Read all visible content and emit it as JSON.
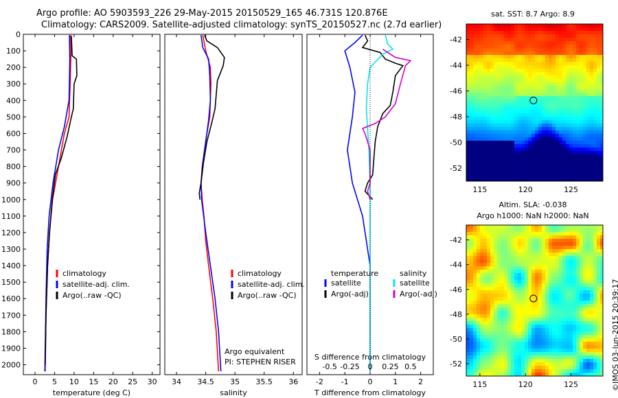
{
  "header": {
    "line1": "Argo profile: AO 5903593_226 29-May-2015 20150529_165 46.731S 120.876E",
    "line2": "Climatology: CARS2009. Satellite-adjusted climatology: synTS_20150527.nc (2.7d earlier)"
  },
  "credit": "©IMOS 03-Jun-2015 20:39:17",
  "colors": {
    "red": "#ff0000",
    "blue": "#0000ff",
    "black": "#000000",
    "cyan": "#00e5ee",
    "magenta": "#cc00cc"
  },
  "chart_data": [
    {
      "type": "line",
      "xlabel": "temperature (deg C)",
      "ylabel": "",
      "xlim": [
        -3,
        32
      ],
      "ylim": [
        2060,
        0
      ],
      "xticks": [
        0,
        5,
        10,
        15,
        20,
        25,
        30
      ],
      "yticks": [
        0,
        100,
        200,
        300,
        400,
        500,
        600,
        700,
        800,
        900,
        1000,
        1100,
        1200,
        1300,
        1400,
        1500,
        1600,
        1700,
        1800,
        1900,
        2000
      ],
      "legend": [
        {
          "label": "climatology",
          "color": "red"
        },
        {
          "label": "satellite-adj. clim.",
          "color": "blue"
        },
        {
          "label": "Argo(..raw -QC)",
          "color": "black"
        }
      ],
      "series": [
        {
          "name": "climatology",
          "color": "red",
          "points": [
            [
              9.1,
              5
            ],
            [
              9.2,
              100
            ],
            [
              9.0,
              300
            ],
            [
              8.7,
              500
            ],
            [
              7.5,
              600
            ],
            [
              6,
              800
            ],
            [
              4.5,
              1000
            ],
            [
              3.7,
              1200
            ],
            [
              3.2,
              1400
            ],
            [
              2.8,
              1700
            ],
            [
              2.6,
              2040
            ]
          ]
        },
        {
          "name": "satellite-adj. clim.",
          "color": "blue",
          "points": [
            [
              8.8,
              5
            ],
            [
              8.9,
              150
            ],
            [
              8.7,
              400
            ],
            [
              7.5,
              560
            ],
            [
              6,
              700
            ],
            [
              4.6,
              900
            ],
            [
              3.6,
              1100
            ],
            [
              3.1,
              1300
            ],
            [
              2.8,
              1600
            ],
            [
              2.6,
              1900
            ],
            [
              2.5,
              2040
            ]
          ]
        },
        {
          "name": "Argo(..raw -QC)",
          "color": "black",
          "points": [
            [
              9.3,
              10
            ],
            [
              9.5,
              130
            ],
            [
              10.6,
              150
            ],
            [
              10.7,
              250
            ],
            [
              10,
              300
            ],
            [
              9.8,
              450
            ],
            [
              9.2,
              510
            ],
            [
              8.2,
              620
            ],
            [
              6.7,
              750
            ],
            [
              5.2,
              850
            ],
            [
              4.4,
              1000
            ],
            [
              3.7,
              1200
            ],
            [
              3.2,
              1400
            ],
            [
              2.8,
              1700
            ],
            [
              2.6,
              2000
            ]
          ]
        }
      ]
    },
    {
      "type": "line",
      "xlabel": "salinity",
      "ylabel": "",
      "xlim": [
        33.8,
        36.15
      ],
      "ylim": [
        2060,
        0
      ],
      "xticks": [
        34,
        34.5,
        35,
        35.5,
        36
      ],
      "yticks": [],
      "legend": [
        {
          "label": "climatology",
          "color": "red"
        },
        {
          "label": "satellite-adj. clim.",
          "color": "blue"
        },
        {
          "label": "Argo(..raw -QC)",
          "color": "black"
        }
      ],
      "annotation": [
        "Argo equivalent",
        "PI: STEPHEN RISER"
      ],
      "series": [
        {
          "name": "climatology",
          "color": "red",
          "points": [
            [
              34.45,
              5
            ],
            [
              34.5,
              100
            ],
            [
              34.58,
              200
            ],
            [
              34.59,
              300
            ],
            [
              34.57,
              500
            ],
            [
              34.52,
              600
            ],
            [
              34.48,
              700
            ],
            [
              34.44,
              800
            ],
            [
              34.42,
              900
            ],
            [
              34.44,
              1000
            ],
            [
              34.47,
              1100
            ],
            [
              34.5,
              1250
            ],
            [
              34.55,
              1400
            ],
            [
              34.62,
              1600
            ],
            [
              34.68,
              1800
            ],
            [
              34.72,
              2040
            ]
          ]
        },
        {
          "name": "satellite-adj. clim.",
          "color": "blue",
          "points": [
            [
              34.42,
              5
            ],
            [
              34.45,
              80
            ],
            [
              34.55,
              150
            ],
            [
              34.57,
              250
            ],
            [
              34.58,
              400
            ],
            [
              34.55,
              520
            ],
            [
              34.5,
              650
            ],
            [
              34.45,
              780
            ],
            [
              34.42,
              900
            ],
            [
              34.43,
              1000
            ],
            [
              34.5,
              1200
            ],
            [
              34.58,
              1400
            ],
            [
              34.66,
              1600
            ],
            [
              34.72,
              1800
            ],
            [
              34.76,
              2040
            ]
          ]
        },
        {
          "name": "Argo(..raw -QC)",
          "color": "black",
          "points": [
            [
              34.48,
              5
            ],
            [
              34.52,
              40
            ],
            [
              34.7,
              80
            ],
            [
              34.82,
              140
            ],
            [
              34.8,
              190
            ],
            [
              34.7,
              280
            ],
            [
              34.66,
              450
            ],
            [
              34.6,
              540
            ],
            [
              34.52,
              650
            ],
            [
              34.46,
              780
            ],
            [
              34.42,
              900
            ],
            [
              34.39,
              960
            ],
            [
              34.4,
              1000
            ]
          ]
        }
      ]
    },
    {
      "type": "line",
      "xlabel": "T difference from climatology",
      "title": "S difference from climatology",
      "xlim": [
        -2.5,
        2.5
      ],
      "ylim": [
        2060,
        0
      ],
      "xticks": [
        -2,
        -1,
        0,
        1,
        2
      ],
      "xticks_top": [
        -0.5,
        -0.25,
        0,
        0.25,
        0.5
      ],
      "yticks": [],
      "legend_headers": [
        "temperature",
        "salinity"
      ],
      "legend": [
        {
          "label": "satellite",
          "color": "blue"
        },
        {
          "label": "satellite",
          "color": "cyan"
        },
        {
          "label": "Argo(-adj)",
          "color": "black"
        },
        {
          "label": "Argo(-adj)",
          "color": "magenta"
        }
      ],
      "series": [
        {
          "name": "temperature satellite",
          "color": "blue",
          "points": [
            [
              -0.3,
              5
            ],
            [
              -0.6,
              50
            ],
            [
              -1.0,
              100
            ],
            [
              -0.8,
              200
            ],
            [
              -0.6,
              350
            ],
            [
              -0.7,
              500
            ],
            [
              -0.9,
              700
            ],
            [
              -0.7,
              900
            ],
            [
              -0.3,
              1100
            ],
            [
              0,
              1400
            ],
            [
              0,
              2040
            ]
          ]
        },
        {
          "name": "temperature Argo(-adj)",
          "color": "black",
          "points": [
            [
              -0.2,
              5
            ],
            [
              -0.1,
              40
            ],
            [
              -0.3,
              80
            ],
            [
              0.4,
              110
            ],
            [
              0.6,
              150
            ],
            [
              1.0,
              175
            ],
            [
              1.3,
              190
            ],
            [
              1.0,
              250
            ],
            [
              0.9,
              350
            ],
            [
              0.8,
              430
            ],
            [
              0.5,
              480
            ],
            [
              0.3,
              560
            ],
            [
              0.2,
              650
            ],
            [
              0.15,
              750
            ],
            [
              0.1,
              850
            ],
            [
              -0.1,
              900
            ],
            [
              -0.2,
              950
            ],
            [
              0.1,
              1000
            ]
          ]
        },
        {
          "name": "salinity satellite",
          "color": "cyan",
          "points": [
            [
              0.6,
              5
            ],
            [
              0.7,
              60
            ],
            [
              0.9,
              90
            ],
            [
              0.5,
              120
            ],
            [
              0,
              200
            ],
            [
              -0.1,
              300
            ],
            [
              -0.15,
              450
            ],
            [
              -0.05,
              700
            ],
            [
              0,
              900
            ],
            [
              0,
              1000
            ],
            [
              0,
              2040
            ]
          ]
        },
        {
          "name": "salinity Argo(-adj)",
          "color": "magenta",
          "points": [
            [
              0.5,
              90
            ],
            [
              1.0,
              140
            ],
            [
              1.6,
              160
            ],
            [
              1.4,
              190
            ],
            [
              1.2,
              300
            ],
            [
              1.0,
              420
            ],
            [
              0.6,
              500
            ],
            [
              0.2,
              540
            ],
            [
              -0.3,
              570
            ],
            [
              -0.2,
              600
            ],
            [
              0,
              700
            ],
            [
              0,
              800
            ],
            [
              0,
              900
            ],
            [
              -0.1,
              950
            ],
            [
              0,
              1000
            ]
          ]
        }
      ]
    },
    {
      "type": "heatmap",
      "title": "sat. SST: 8.7 Argo: 8.9",
      "xticks": [
        115,
        120,
        125
      ],
      "yticks": [
        -42,
        -44,
        -46,
        -48,
        -50,
        -52
      ],
      "xlim": [
        113.5,
        128.5
      ],
      "ylim": [
        -53,
        -40.8
      ],
      "marker": [
        120.876,
        -46.731
      ]
    },
    {
      "type": "heatmap",
      "title": [
        "Altim. SLA: -0.038",
        "Argo h1000: NaN h2000: NaN"
      ],
      "xticks": [
        115,
        120,
        125
      ],
      "yticks": [
        -42,
        -44,
        -46,
        -48,
        -50,
        -52
      ],
      "xlim": [
        113.5,
        128.5
      ],
      "ylim": [
        -53,
        -40.8
      ],
      "marker": [
        120.876,
        -46.731
      ]
    }
  ]
}
